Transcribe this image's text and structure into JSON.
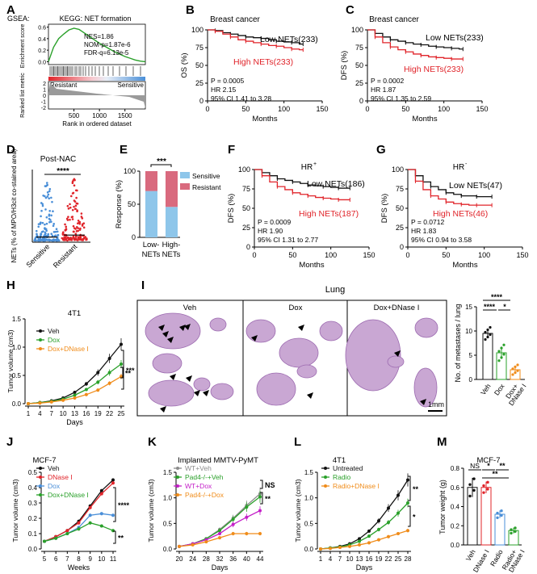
{
  "panel_labels": [
    "A",
    "B",
    "C",
    "D",
    "E",
    "F",
    "G",
    "H",
    "I",
    "J",
    "K",
    "L",
    "M"
  ],
  "colors": {
    "red": "#e0242a",
    "black": "#111111",
    "green": "#2aa02a",
    "orange": "#f08c1a",
    "blue": "#4a8fd8",
    "magenta": "#c41fc8",
    "gray": "#8c8c8c",
    "lightblue": "#8ec6ea",
    "pink": "#d96a7e",
    "tissue": "#c9a7d3",
    "tissue_dark": "#9c6ab0"
  },
  "chart_data": [
    {
      "id": "A",
      "type": "line",
      "title": "KEGG: NET formation",
      "gsea_label": "GSEA:",
      "stats": [
        "NES=1.86",
        "NOM-p=1.87e-6",
        "FDR-q=6.13e-5"
      ],
      "ylabel_top": "Enrichment score",
      "ylabel_bottom": "Ranked list metric",
      "yticks_top": [
        "0.6",
        "0.4",
        "0.2",
        "0.0"
      ],
      "yticks_bottom": [
        "2",
        "1",
        "0",
        "-1",
        "-2"
      ],
      "bar_labels": [
        "Resistant",
        "Sensitive"
      ],
      "xticks": [
        "500",
        "1000",
        "1500"
      ],
      "xlabel": "Rank in ordered dataset",
      "x": [
        0,
        100,
        200,
        300,
        400,
        500,
        600,
        700,
        800,
        900,
        1000,
        1100,
        1200,
        1300,
        1400,
        1500,
        1600,
        1700,
        1800,
        1900
      ],
      "enrichment": [
        0.0,
        0.25,
        0.4,
        0.48,
        0.55,
        0.58,
        0.56,
        0.5,
        0.44,
        0.38,
        0.32,
        0.27,
        0.22,
        0.17,
        0.13,
        0.09,
        0.06,
        0.03,
        0.01,
        0.0
      ]
    },
    {
      "id": "B",
      "type": "line",
      "title": "Breast cancer",
      "ylabel": "OS (%)",
      "xlabel": "Months",
      "xlim": [
        0,
        150
      ],
      "ylim": [
        0,
        100
      ],
      "xticks": [
        "0",
        "50",
        "100",
        "150"
      ],
      "yticks": [
        "0",
        "25",
        "50",
        "75",
        "100"
      ],
      "stats": [
        "P = 0.0005",
        "HR  2.15",
        "95% CI 1.41 to 3.28"
      ],
      "series": [
        {
          "name": "Low NETs(233)",
          "color": "#111111",
          "x": [
            0,
            10,
            20,
            30,
            40,
            50,
            60,
            70,
            80,
            90,
            100,
            110,
            120,
            125
          ],
          "y": [
            100,
            99,
            96,
            94,
            92,
            90,
            89,
            88,
            86,
            84,
            83,
            82,
            80,
            80
          ]
        },
        {
          "name": "High NETs(233)",
          "color": "#e0242a",
          "x": [
            0,
            10,
            20,
            30,
            40,
            50,
            60,
            70,
            80,
            90,
            100,
            110,
            120,
            125
          ],
          "y": [
            100,
            98,
            94,
            90,
            86,
            84,
            82,
            80,
            78,
            77,
            75,
            73,
            72,
            72
          ]
        }
      ]
    },
    {
      "id": "C",
      "type": "line",
      "title": "Breast cancer",
      "ylabel": "DFS (%)",
      "xlabel": "Months",
      "xlim": [
        0,
        150
      ],
      "ylim": [
        0,
        100
      ],
      "xticks": [
        "0",
        "50",
        "100",
        "150"
      ],
      "yticks": [
        "0",
        "25",
        "50",
        "75",
        "100"
      ],
      "stats": [
        "P = 0.0002",
        "HR  1.87",
        "95% CI 1.35 to 2.59"
      ],
      "series": [
        {
          "name": "Low NETs(233)",
          "color": "#111111",
          "x": [
            0,
            10,
            20,
            30,
            40,
            50,
            60,
            70,
            80,
            90,
            100,
            110,
            120,
            125
          ],
          "y": [
            100,
            95,
            90,
            86,
            84,
            82,
            80,
            79,
            77,
            76,
            75,
            74,
            73,
            73
          ]
        },
        {
          "name": "High NETs(233)",
          "color": "#e0242a",
          "x": [
            0,
            10,
            20,
            30,
            40,
            50,
            60,
            70,
            80,
            90,
            100,
            110,
            120,
            125
          ],
          "y": [
            100,
            90,
            82,
            76,
            72,
            69,
            66,
            64,
            62,
            61,
            60,
            59,
            59,
            59
          ]
        }
      ]
    },
    {
      "id": "D",
      "type": "scatter",
      "title": "Post-NAC",
      "ylabel": "NETs (% of MPO/H3cit co-stained area)",
      "categories": [
        "Sensitive",
        "Resistant"
      ],
      "sig": "****",
      "colors": [
        "#4a8fd8",
        "#e0242a"
      ],
      "medians": [
        2,
        4
      ]
    },
    {
      "id": "E",
      "type": "bar",
      "ylabel": "Response (%)",
      "categories": [
        "Low-NETs",
        "High-NETs"
      ],
      "cat_line1": [
        "Low-",
        "High-"
      ],
      "cat_line2": [
        "NETs",
        "NETs"
      ],
      "yticks": [
        "0",
        "50",
        "100"
      ],
      "ylim": [
        0,
        100
      ],
      "sig": "***",
      "series": [
        {
          "name": "Sensitive",
          "color": "#8ec6ea",
          "values": [
            70,
            46
          ]
        },
        {
          "name": "Resistant",
          "color": "#d96a7e",
          "values": [
            30,
            54
          ]
        }
      ]
    },
    {
      "id": "F",
      "type": "line",
      "title": "HR",
      "title_sup": "+",
      "ylabel": "DFS (%)",
      "xlabel": "Months",
      "xlim": [
        0,
        150
      ],
      "ylim": [
        0,
        100
      ],
      "xticks": [
        "0",
        "50",
        "100",
        "150"
      ],
      "yticks": [
        "0",
        "25",
        "50",
        "75",
        "100"
      ],
      "stats": [
        "P = 0.0009",
        "HR 1.90",
        "95% CI 1.31 to 2.77"
      ],
      "series": [
        {
          "name": "Low NETs(186)",
          "color": "#111111",
          "x": [
            0,
            10,
            20,
            30,
            40,
            50,
            60,
            70,
            80,
            90,
            100,
            110,
            120,
            125
          ],
          "y": [
            100,
            96,
            92,
            88,
            86,
            84,
            82,
            80,
            79,
            78,
            77,
            76,
            76,
            76
          ]
        },
        {
          "name": "High NETs(187)",
          "color": "#e0242a",
          "x": [
            0,
            10,
            20,
            30,
            40,
            50,
            60,
            70,
            80,
            90,
            100,
            110,
            120,
            125
          ],
          "y": [
            100,
            92,
            84,
            78,
            74,
            70,
            68,
            66,
            64,
            63,
            62,
            61,
            61,
            61
          ]
        }
      ]
    },
    {
      "id": "G",
      "type": "line",
      "title": "HR",
      "title_sup": "-",
      "ylabel": "DFS (%)",
      "xlabel": "Months",
      "xlim": [
        0,
        150
      ],
      "ylim": [
        0,
        100
      ],
      "xticks": [
        "0",
        "50",
        "100",
        "150"
      ],
      "yticks": [
        "0",
        "25",
        "50",
        "75",
        "100"
      ],
      "stats": [
        "P = 0.0712",
        "HR 1.83",
        "95% CI 0.94 to 3.58"
      ],
      "series": [
        {
          "name": "Low NETs(47)",
          "color": "#111111",
          "x": [
            0,
            10,
            20,
            30,
            40,
            50,
            60,
            70,
            80,
            90,
            100,
            110
          ],
          "y": [
            100,
            92,
            84,
            78,
            74,
            70,
            68,
            66,
            66,
            65,
            65,
            65
          ]
        },
        {
          "name": "High NETs(46)",
          "color": "#e0242a",
          "x": [
            0,
            10,
            20,
            30,
            40,
            50,
            60,
            70,
            80,
            90,
            100,
            110
          ],
          "y": [
            100,
            85,
            74,
            66,
            62,
            58,
            56,
            55,
            54,
            54,
            54,
            54
          ]
        }
      ]
    },
    {
      "id": "H",
      "type": "line",
      "title": "4T1",
      "ylabel": "Tumor volume (cm3)",
      "xlabel": "Days",
      "xticks": [
        "1",
        "4",
        "7",
        "10",
        "13",
        "16",
        "19",
        "22",
        "25"
      ],
      "yticks": [
        "0.0",
        "0.5",
        "1.0",
        "1.5"
      ],
      "ylim": [
        0,
        1.5
      ],
      "sig": [
        "***",
        "**"
      ],
      "series": [
        {
          "name": "Veh",
          "color": "#111111",
          "x": [
            1,
            4,
            7,
            10,
            13,
            16,
            19,
            22,
            25
          ],
          "y": [
            0.0,
            0.02,
            0.05,
            0.1,
            0.2,
            0.35,
            0.55,
            0.8,
            1.05
          ]
        },
        {
          "name": "Dox",
          "color": "#2aa02a",
          "x": [
            1,
            4,
            7,
            10,
            13,
            16,
            19,
            22,
            25
          ],
          "y": [
            0.0,
            0.02,
            0.04,
            0.08,
            0.15,
            0.25,
            0.38,
            0.55,
            0.7
          ]
        },
        {
          "name": "Dox+DNase I",
          "color": "#f08c1a",
          "x": [
            1,
            4,
            7,
            10,
            13,
            16,
            19,
            22,
            25
          ],
          "y": [
            0.0,
            0.01,
            0.03,
            0.06,
            0.1,
            0.16,
            0.24,
            0.36,
            0.48
          ]
        }
      ]
    },
    {
      "id": "I",
      "type": "bar",
      "title": "Lung",
      "group_labels": [
        "Veh",
        "Dox",
        "Dox+DNase I"
      ],
      "scale_label": "1mm",
      "ylabel": "No. of metastases / lung",
      "categories": [
        "Veh",
        "Dox",
        "Dox+ DNase I"
      ],
      "cat_line1": [
        "Veh",
        "Dox",
        "Dox+"
      ],
      "cat_line2": [
        "",
        "",
        "DNase I"
      ],
      "values": [
        9.5,
        5.5,
        2.0
      ],
      "errors": [
        1.0,
        1.3,
        0.8
      ],
      "colors": [
        "#111111",
        "#2aa02a",
        "#f08c1a"
      ],
      "yticks": [
        "0",
        "5",
        "10",
        "15"
      ],
      "ylim": [
        0,
        15
      ],
      "sig": [
        "****",
        "****",
        "*"
      ]
    },
    {
      "id": "J",
      "type": "line",
      "title": "MCF-7",
      "ylabel": "Tumor volume (cm3)",
      "xlabel": "Weeks",
      "xticks": [
        "5",
        "6",
        "7",
        "8",
        "9",
        "10",
        "11"
      ],
      "yticks": [
        "0.0",
        "0.1",
        "0.2",
        "0.3",
        "0.4",
        "0.5"
      ],
      "ylim": [
        0,
        0.5
      ],
      "sig": [
        "****",
        "**"
      ],
      "series": [
        {
          "name": "Veh",
          "color": "#111111",
          "x": [
            5,
            6,
            7,
            8,
            9,
            10,
            11
          ],
          "y": [
            0.05,
            0.08,
            0.12,
            0.18,
            0.28,
            0.38,
            0.45
          ]
        },
        {
          "name": "DNase I",
          "color": "#e0242a",
          "x": [
            5,
            6,
            7,
            8,
            9,
            10,
            11
          ],
          "y": [
            0.05,
            0.08,
            0.12,
            0.17,
            0.27,
            0.36,
            0.43
          ]
        },
        {
          "name": "Dox",
          "color": "#4a8fd8",
          "x": [
            5,
            6,
            7,
            8,
            9,
            10,
            11
          ],
          "y": [
            0.05,
            0.07,
            0.1,
            0.14,
            0.22,
            0.23,
            0.22
          ]
        },
        {
          "name": "Dox+DNase I",
          "color": "#2aa02a",
          "x": [
            5,
            6,
            7,
            8,
            9,
            10,
            11
          ],
          "y": [
            0.05,
            0.07,
            0.1,
            0.13,
            0.17,
            0.15,
            0.12
          ]
        }
      ]
    },
    {
      "id": "K",
      "type": "line",
      "title": "Implanted MMTV-PyMT",
      "ylabel": "Tumor volume (cm3)",
      "xlabel": "Days",
      "xticks": [
        "20",
        "24",
        "28",
        "32",
        "36",
        "40",
        "44"
      ],
      "yticks": [
        "0.0",
        "0.5",
        "1.0",
        "1.5"
      ],
      "ylim": [
        0,
        1.5
      ],
      "sig": [
        "NS",
        "**"
      ],
      "series": [
        {
          "name": "WT+Veh",
          "color": "#8c8c8c",
          "x": [
            20,
            24,
            28,
            32,
            36,
            40,
            44
          ],
          "y": [
            0.05,
            0.1,
            0.2,
            0.38,
            0.6,
            0.85,
            1.08
          ]
        },
        {
          "name": "Pad4-/-+Veh",
          "color": "#2aa02a",
          "x": [
            20,
            24,
            28,
            32,
            36,
            40,
            44
          ],
          "y": [
            0.05,
            0.1,
            0.2,
            0.36,
            0.58,
            0.82,
            1.02
          ]
        },
        {
          "name": "WT+Dox",
          "color": "#c41fc8",
          "x": [
            20,
            24,
            28,
            32,
            36,
            40,
            44
          ],
          "y": [
            0.05,
            0.1,
            0.18,
            0.3,
            0.48,
            0.62,
            0.75
          ]
        },
        {
          "name": "Pad4-/-+Dox",
          "color": "#f08c1a",
          "x": [
            20,
            24,
            28,
            32,
            36,
            40,
            44
          ],
          "y": [
            0.05,
            0.08,
            0.14,
            0.22,
            0.3,
            0.3,
            0.3
          ]
        }
      ]
    },
    {
      "id": "L",
      "type": "line",
      "title": "4T1",
      "ylabel": "Tumor volume (cm3)",
      "xlabel": "Days",
      "xticks": [
        "1",
        "4",
        "7",
        "10",
        "13",
        "16",
        "19",
        "22",
        "25",
        "28"
      ],
      "yticks": [
        "0.0",
        "0.5",
        "1.0",
        "1.5"
      ],
      "ylim": [
        0,
        1.5
      ],
      "sig": [
        "**",
        "*"
      ],
      "series": [
        {
          "name": "Untreated",
          "color": "#111111",
          "x": [
            1,
            4,
            7,
            10,
            13,
            16,
            19,
            22,
            25,
            28
          ],
          "y": [
            0.0,
            0.02,
            0.05,
            0.1,
            0.2,
            0.35,
            0.55,
            0.8,
            1.05,
            1.35
          ]
        },
        {
          "name": "Radio",
          "color": "#2aa02a",
          "x": [
            1,
            4,
            7,
            10,
            13,
            16,
            19,
            22,
            25,
            28
          ],
          "y": [
            0.0,
            0.02,
            0.04,
            0.08,
            0.15,
            0.25,
            0.38,
            0.52,
            0.7,
            0.9
          ]
        },
        {
          "name": "Radio+DNase I",
          "color": "#f08c1a",
          "x": [
            1,
            4,
            7,
            10,
            13,
            16,
            19,
            22,
            25,
            28
          ],
          "y": [
            0.0,
            0.01,
            0.03,
            0.05,
            0.08,
            0.12,
            0.18,
            0.24,
            0.3,
            0.36
          ]
        }
      ]
    },
    {
      "id": "M",
      "type": "bar",
      "title": "MCF-7",
      "ylabel": "Tumor weight (g)",
      "categories": [
        "Veh",
        "DNase I",
        "Radio",
        "Radio+ DNase I"
      ],
      "cat_line1": [
        "Veh",
        "DNase I",
        "Radio",
        "Radio+"
      ],
      "cat_line2": [
        "",
        "",
        "",
        "DNase I"
      ],
      "values": [
        0.6,
        0.6,
        0.32,
        0.15
      ],
      "errors": [
        0.1,
        0.06,
        0.04,
        0.03
      ],
      "colors": [
        "#111111",
        "#e0242a",
        "#4a8fd8",
        "#2aa02a"
      ],
      "yticks": [
        "0.0",
        "0.2",
        "0.4",
        "0.6",
        "0.8"
      ],
      "ylim": [
        0,
        0.8
      ],
      "sig": [
        "NS",
        "*",
        "**",
        "**"
      ]
    }
  ]
}
